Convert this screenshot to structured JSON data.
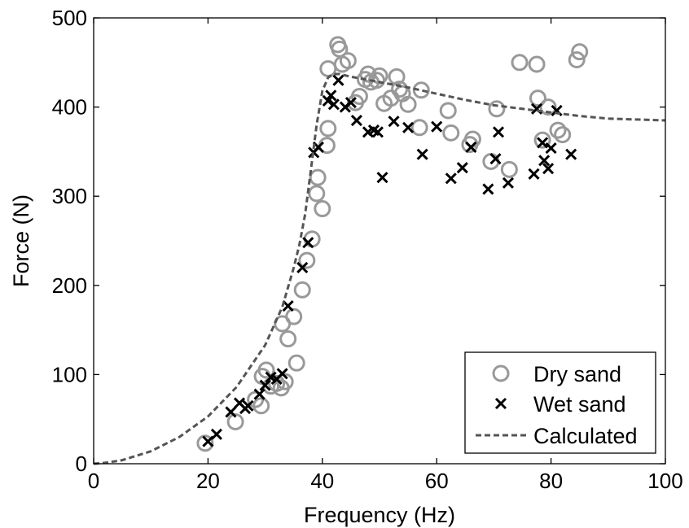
{
  "chart_data": {
    "type": "scatter",
    "xlabel": "Frequency (Hz)",
    "ylabel": "Force (N)",
    "xlim": [
      0,
      100
    ],
    "ylim": [
      0,
      500
    ],
    "xticks": [
      "0",
      "20",
      "40",
      "60",
      "80",
      "100"
    ],
    "yticks": [
      "0",
      "100",
      "200",
      "300",
      "400",
      "500"
    ],
    "grid": false,
    "legend_position": "bottom-right",
    "series": [
      {
        "name": "Dry sand",
        "marker": "circle",
        "color": "#999999",
        "points": [
          [
            19.5,
            23
          ],
          [
            24.8,
            47
          ],
          [
            28.3,
            72
          ],
          [
            29.3,
            65
          ],
          [
            29.5,
            98
          ],
          [
            30.2,
            105
          ],
          [
            31.0,
            87
          ],
          [
            32.0,
            90
          ],
          [
            32.8,
            85
          ],
          [
            33.0,
            157
          ],
          [
            33.5,
            92
          ],
          [
            34.0,
            140
          ],
          [
            35.0,
            165
          ],
          [
            35.5,
            113
          ],
          [
            36.5,
            195
          ],
          [
            37.3,
            228
          ],
          [
            38.2,
            252
          ],
          [
            39.0,
            303
          ],
          [
            39.2,
            321
          ],
          [
            40.0,
            286
          ],
          [
            40.8,
            357
          ],
          [
            41.0,
            376
          ],
          [
            41.0,
            443
          ],
          [
            42.7,
            470
          ],
          [
            43.0,
            465
          ],
          [
            43.5,
            448
          ],
          [
            44.5,
            452
          ],
          [
            45.8,
            405
          ],
          [
            46.5,
            412
          ],
          [
            47.5,
            431
          ],
          [
            48.0,
            437
          ],
          [
            48.5,
            428
          ],
          [
            49.5,
            430
          ],
          [
            50.0,
            435
          ],
          [
            50.8,
            404
          ],
          [
            52.0,
            410
          ],
          [
            53.0,
            434
          ],
          [
            53.5,
            420
          ],
          [
            54.0,
            415
          ],
          [
            55.0,
            403
          ],
          [
            57.0,
            377
          ],
          [
            57.3,
            419
          ],
          [
            62.0,
            396
          ],
          [
            62.5,
            371
          ],
          [
            65.8,
            358
          ],
          [
            66.3,
            364
          ],
          [
            69.5,
            339
          ],
          [
            70.5,
            398
          ],
          [
            72.7,
            330
          ],
          [
            74.5,
            450
          ],
          [
            77.5,
            448
          ],
          [
            77.7,
            410
          ],
          [
            78.5,
            363
          ],
          [
            79.5,
            400
          ],
          [
            81.2,
            374
          ],
          [
            82.0,
            369
          ],
          [
            84.5,
            453
          ],
          [
            85.0,
            462
          ]
        ]
      },
      {
        "name": "Wet sand",
        "marker": "x",
        "color": "#000000",
        "points": [
          [
            20.0,
            25
          ],
          [
            21.5,
            33
          ],
          [
            24.0,
            58
          ],
          [
            25.5,
            68
          ],
          [
            26.5,
            62
          ],
          [
            27.0,
            65
          ],
          [
            29.0,
            78
          ],
          [
            30.0,
            88
          ],
          [
            31.0,
            97
          ],
          [
            32.0,
            95
          ],
          [
            33.0,
            101
          ],
          [
            34.0,
            177
          ],
          [
            36.5,
            220
          ],
          [
            37.5,
            248
          ],
          [
            38.5,
            349
          ],
          [
            39.3,
            355
          ],
          [
            41.0,
            407
          ],
          [
            41.5,
            413
          ],
          [
            42.0,
            403
          ],
          [
            42.8,
            430
          ],
          [
            44.0,
            400
          ],
          [
            45.0,
            405
          ],
          [
            46.0,
            385
          ],
          [
            48.0,
            372
          ],
          [
            49.0,
            374
          ],
          [
            49.7,
            372
          ],
          [
            50.5,
            321
          ],
          [
            52.5,
            384
          ],
          [
            55.0,
            377
          ],
          [
            57.5,
            347
          ],
          [
            60.0,
            378
          ],
          [
            62.5,
            320
          ],
          [
            64.5,
            332
          ],
          [
            66.0,
            355
          ],
          [
            69.0,
            308
          ],
          [
            70.3,
            342
          ],
          [
            70.8,
            372
          ],
          [
            72.5,
            315
          ],
          [
            77.0,
            325
          ],
          [
            77.5,
            398
          ],
          [
            78.5,
            360
          ],
          [
            78.8,
            340
          ],
          [
            79.5,
            331
          ],
          [
            80.0,
            354
          ],
          [
            81.0,
            396
          ],
          [
            83.5,
            347
          ]
        ]
      },
      {
        "name": "Calculated",
        "marker": "dashed-line",
        "color": "#555555",
        "points": [
          [
            0,
            0
          ],
          [
            2,
            1
          ],
          [
            5,
            4
          ],
          [
            10,
            14
          ],
          [
            15,
            30
          ],
          [
            20,
            53
          ],
          [
            25,
            86
          ],
          [
            30,
            133
          ],
          [
            33,
            176
          ],
          [
            35,
            220
          ],
          [
            36,
            246
          ],
          [
            37,
            280
          ],
          [
            38,
            330
          ],
          [
            39,
            380
          ],
          [
            40,
            418
          ],
          [
            41,
            433
          ],
          [
            42,
            437
          ],
          [
            43,
            437
          ],
          [
            45,
            434
          ],
          [
            50,
            428
          ],
          [
            55,
            422
          ],
          [
            60,
            415
          ],
          [
            65,
            408
          ],
          [
            70,
            402
          ],
          [
            75,
            398
          ],
          [
            80,
            394
          ],
          [
            85,
            390
          ],
          [
            90,
            387
          ],
          [
            95,
            386
          ],
          [
            100,
            385
          ]
        ]
      }
    ]
  }
}
